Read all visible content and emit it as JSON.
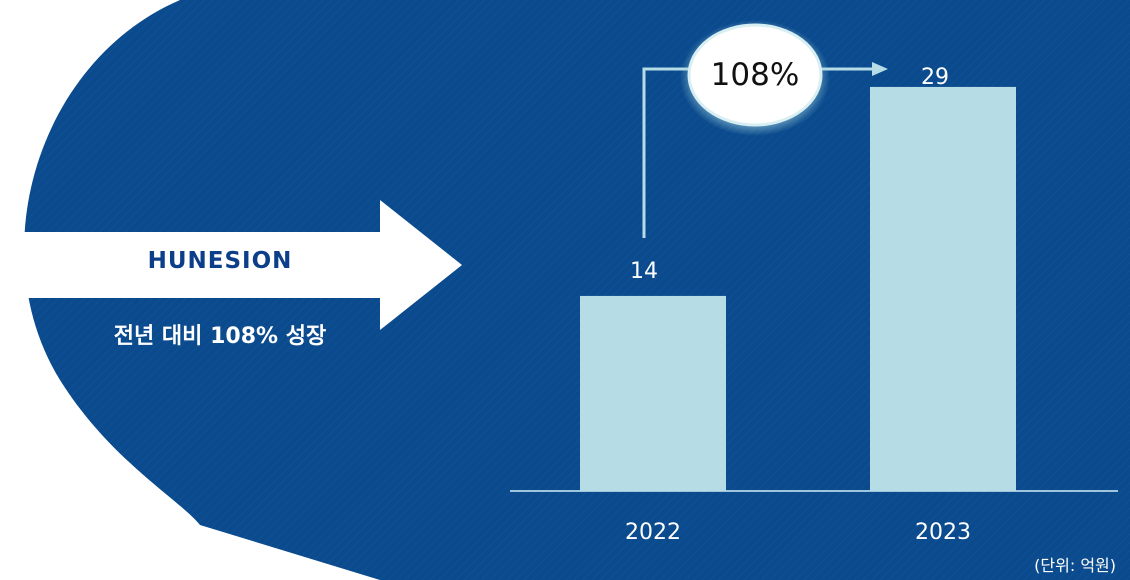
{
  "brand": {
    "name": "HUNESION"
  },
  "headline": "전년 대비 108% 성장",
  "growth_badge": "108%",
  "unit_note": "(단위: 억원)",
  "colors": {
    "background_blue": "#0b4a8c",
    "bar_fill": "#b6dce6",
    "brand_text": "#0d3e8a",
    "connector": "#b6dce6"
  },
  "chart_data": {
    "type": "bar",
    "categories": [
      "2022",
      "2023"
    ],
    "values": [
      14,
      29
    ],
    "data_labels": [
      "14",
      "29"
    ],
    "title": "",
    "xlabel": "",
    "ylabel": "",
    "ylim": [
      0,
      30
    ],
    "grid": false
  }
}
